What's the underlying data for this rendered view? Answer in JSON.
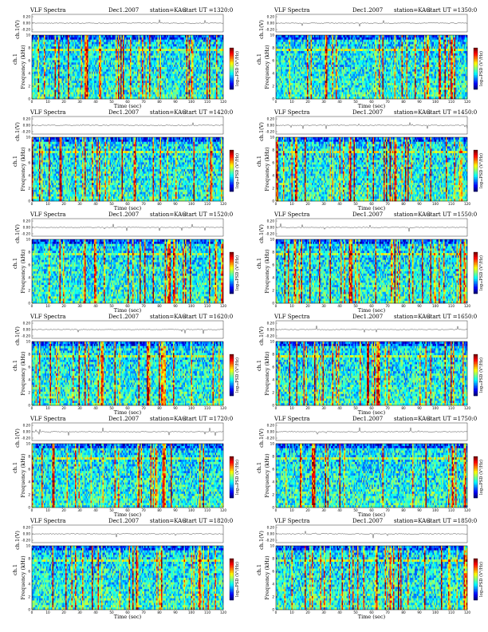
{
  "chart_data": [
    {
      "type": "heatmap",
      "title": "VLF Spectra",
      "date": "Dec1.2007",
      "station": "station=KAG",
      "start": "start  UT =1320:0",
      "top_ylabel": "ch.1(V)",
      "top_yticks": [
        "0.20",
        "0.00",
        "-0.20"
      ],
      "ylabel": "Frequency (kHz)",
      "channel": "ch.1",
      "yticks": [
        "0",
        "2",
        "4",
        "6",
        "8",
        "10"
      ],
      "xlabel": "Time (sec)",
      "xticks": [
        "0",
        "10",
        "20",
        "30",
        "40",
        "50",
        "60",
        "70",
        "80",
        "90",
        "100",
        "110",
        "120"
      ],
      "colorbar_label": "log₁₀PSD (V²/Hz)",
      "xlim": [
        0,
        120
      ],
      "ylim": [
        0,
        10
      ]
    },
    {
      "type": "heatmap",
      "title": "VLF Spectra",
      "date": "Dec1.2007",
      "station": "station=KAG",
      "start": "start  UT =1350:0",
      "top_ylabel": "ch.1(V)",
      "top_yticks": [
        "0.20",
        "0.00",
        "-0.20"
      ],
      "ylabel": "Frequency (kHz)",
      "channel": "ch.1",
      "yticks": [
        "0",
        "2",
        "4",
        "6",
        "8",
        "10"
      ],
      "xlabel": "Time (sec)",
      "xticks": [
        "0",
        "10",
        "20",
        "30",
        "40",
        "50",
        "60",
        "70",
        "80",
        "90",
        "100",
        "110",
        "120"
      ],
      "colorbar_label": "log₁₀PSD (V²/Hz)",
      "xlim": [
        0,
        120
      ],
      "ylim": [
        0,
        10
      ]
    },
    {
      "type": "heatmap",
      "title": "VLF Spectra",
      "date": "Dec1.2007",
      "station": "station=KAG",
      "start": "start  UT =1420:0",
      "top_ylabel": "ch.1(V)",
      "top_yticks": [
        "0.20",
        "0.00",
        "-0.20"
      ],
      "ylabel": "Frequency (kHz)",
      "channel": "ch.1",
      "yticks": [
        "0",
        "2",
        "4",
        "6",
        "8",
        "10"
      ],
      "xlabel": "Time (sec)",
      "xticks": [
        "0",
        "10",
        "20",
        "30",
        "40",
        "50",
        "60",
        "70",
        "80",
        "90",
        "100",
        "110",
        "120"
      ],
      "colorbar_label": "log₁₀PSD (V²/Hz)",
      "xlim": [
        0,
        120
      ],
      "ylim": [
        0,
        10
      ]
    },
    {
      "type": "heatmap",
      "title": "VLF Spectra",
      "date": "Dec1.2007",
      "station": "station=KAG",
      "start": "start  UT =1450:0",
      "top_ylabel": "ch.1(V)",
      "top_yticks": [
        "0.20",
        "0.00",
        "-0.20"
      ],
      "ylabel": "Frequency (kHz)",
      "channel": "ch.1",
      "yticks": [
        "0",
        "2",
        "4",
        "6",
        "8",
        "10"
      ],
      "xlabel": "Time (sec)",
      "xticks": [
        "0",
        "10",
        "20",
        "30",
        "40",
        "50",
        "60",
        "70",
        "80",
        "90",
        "100",
        "110",
        "120"
      ],
      "colorbar_label": "log₁₀PSD (V²/Hz)",
      "xlim": [
        0,
        120
      ],
      "ylim": [
        0,
        10
      ]
    },
    {
      "type": "heatmap",
      "title": "VLF Spectra",
      "date": "Dec1.2007",
      "station": "station=KAG",
      "start": "start  UT =1520:0",
      "top_ylabel": "ch.1(V)",
      "top_yticks": [
        "0.20",
        "0.00",
        "-0.20"
      ],
      "ylabel": "Frequency (kHz)",
      "channel": "ch.1",
      "yticks": [
        "0",
        "2",
        "4",
        "6",
        "8",
        "10"
      ],
      "xlabel": "Time (sec)",
      "xticks": [
        "0",
        "10",
        "20",
        "30",
        "40",
        "50",
        "60",
        "70",
        "80",
        "90",
        "100",
        "110",
        "120"
      ],
      "colorbar_label": "log₁₀PSD (V²/Hz)",
      "xlim": [
        0,
        120
      ],
      "ylim": [
        0,
        10
      ]
    },
    {
      "type": "heatmap",
      "title": "VLF Spectra",
      "date": "Dec1.2007",
      "station": "station=KAG",
      "start": "start  UT =1550:0",
      "top_ylabel": "ch.1(V)",
      "top_yticks": [
        "0.20",
        "0.00",
        "-0.20"
      ],
      "ylabel": "Frequency (kHz)",
      "channel": "ch.1",
      "yticks": [
        "0",
        "2",
        "4",
        "6",
        "8",
        "10"
      ],
      "xlabel": "Time (sec)",
      "xticks": [
        "0",
        "10",
        "20",
        "30",
        "40",
        "50",
        "60",
        "70",
        "80",
        "90",
        "100",
        "110",
        "120"
      ],
      "colorbar_label": "log₁₀PSD (V²/Hz)",
      "xlim": [
        0,
        120
      ],
      "ylim": [
        0,
        10
      ]
    },
    {
      "type": "heatmap",
      "title": "VLF Spectra",
      "date": "Dec1.2007",
      "station": "station=KAG",
      "start": "start  UT =1620:0",
      "top_ylabel": "ch.1(V)",
      "top_yticks": [
        "0.20",
        "0.00",
        "-0.20"
      ],
      "ylabel": "Frequency (kHz)",
      "channel": "ch.1",
      "yticks": [
        "0",
        "2",
        "4",
        "6",
        "8",
        "10"
      ],
      "xlabel": "Time (sec)",
      "xticks": [
        "0",
        "10",
        "20",
        "30",
        "40",
        "50",
        "60",
        "70",
        "80",
        "90",
        "100",
        "110",
        "120"
      ],
      "colorbar_label": "log₁₀PSD (V²/Hz)",
      "xlim": [
        0,
        120
      ],
      "ylim": [
        0,
        10
      ]
    },
    {
      "type": "heatmap",
      "title": "VLF Spectra",
      "date": "Dec1.2007",
      "station": "station=KAG",
      "start": "start  UT =1650:0",
      "top_ylabel": "ch.1(V)",
      "top_yticks": [
        "0.20",
        "0.00",
        "-0.20"
      ],
      "ylabel": "Frequency (kHz)",
      "channel": "ch.1",
      "yticks": [
        "0",
        "2",
        "4",
        "6",
        "8",
        "10"
      ],
      "xlabel": "Time (sec)",
      "xticks": [
        "0",
        "10",
        "20",
        "30",
        "40",
        "50",
        "60",
        "70",
        "80",
        "90",
        "100",
        "110",
        "120"
      ],
      "colorbar_label": "log₁₀PSD (V²/Hz)",
      "xlim": [
        0,
        120
      ],
      "ylim": [
        0,
        10
      ]
    },
    {
      "type": "heatmap",
      "title": "VLF Spectra",
      "date": "Dec1.2007",
      "station": "station=KAG",
      "start": "start  UT =1720:0",
      "top_ylabel": "ch.1(V)",
      "top_yticks": [
        "0.20",
        "0.00",
        "-0.20"
      ],
      "ylabel": "Frequency (kHz)",
      "channel": "ch.1",
      "yticks": [
        "0",
        "2",
        "4",
        "6",
        "8",
        "10"
      ],
      "xlabel": "Time (sec)",
      "xticks": [
        "0",
        "10",
        "20",
        "30",
        "40",
        "50",
        "60",
        "70",
        "80",
        "90",
        "100",
        "110",
        "120"
      ],
      "colorbar_label": "log₁₀PSD (V²/Hz)",
      "xlim": [
        0,
        120
      ],
      "ylim": [
        0,
        10
      ]
    },
    {
      "type": "heatmap",
      "title": "VLF Spectra",
      "date": "Dec1.2007",
      "station": "station=KAG",
      "start": "start  UT =1750:0",
      "top_ylabel": "ch.1(V)",
      "top_yticks": [
        "0.20",
        "0.00",
        "-0.20"
      ],
      "ylabel": "Frequency (kHz)",
      "channel": "ch.1",
      "yticks": [
        "0",
        "2",
        "4",
        "6",
        "8",
        "10"
      ],
      "xlabel": "Time (sec)",
      "xticks": [
        "0",
        "10",
        "20",
        "30",
        "40",
        "50",
        "60",
        "70",
        "80",
        "90",
        "100",
        "110",
        "120"
      ],
      "colorbar_label": "log₁₀PSD (V²/Hz)",
      "xlim": [
        0,
        120
      ],
      "ylim": [
        0,
        10
      ]
    },
    {
      "type": "heatmap",
      "title": "VLF Spectra",
      "date": "Dec1.2007",
      "station": "station=KAG",
      "start": "start  UT =1820:0",
      "top_ylabel": "ch.1(V)",
      "top_yticks": [
        "0.20",
        "0.00",
        "-0.20"
      ],
      "ylabel": "Frequency (kHz)",
      "channel": "ch.1",
      "yticks": [
        "0",
        "2",
        "4",
        "6",
        "8",
        "10"
      ],
      "xlabel": "Time (sec)",
      "xticks": [
        "0",
        "10",
        "20",
        "30",
        "40",
        "50",
        "60",
        "70",
        "80",
        "90",
        "100",
        "110",
        "120"
      ],
      "colorbar_label": "log₁₀PSD (V²/Hz)",
      "xlim": [
        0,
        120
      ],
      "ylim": [
        0,
        10
      ]
    },
    {
      "type": "heatmap",
      "title": "VLF Spectra",
      "date": "Dec1.2007",
      "station": "station=KAG",
      "start": "start  UT =1850:0",
      "top_ylabel": "ch.1(V)",
      "top_yticks": [
        "0.20",
        "0.00",
        "-0.20"
      ],
      "ylabel": "Frequency (kHz)",
      "channel": "ch.1",
      "yticks": [
        "0",
        "2",
        "4",
        "6",
        "8",
        "10"
      ],
      "xlabel": "Time (sec)",
      "xticks": [
        "0",
        "10",
        "20",
        "30",
        "40",
        "50",
        "60",
        "70",
        "80",
        "90",
        "100",
        "110",
        "120"
      ],
      "colorbar_label": "log₁₀PSD (V²/Hz)",
      "xlim": [
        0,
        120
      ],
      "ylim": [
        0,
        10
      ]
    }
  ]
}
